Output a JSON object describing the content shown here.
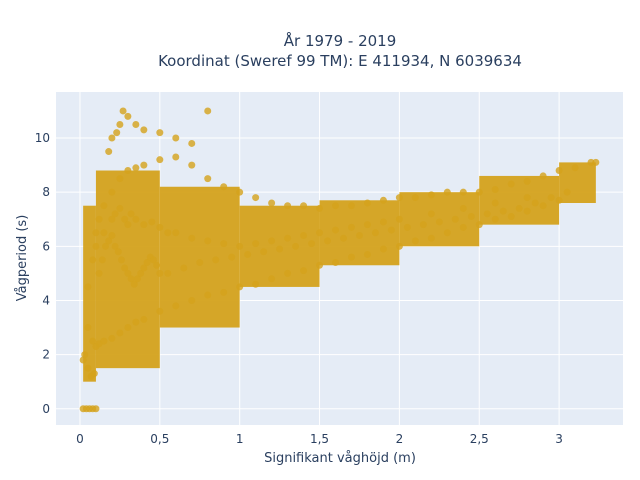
{
  "chart_data": {
    "type": "scatter",
    "title_line1": "År 1979 - 2019",
    "title_line2": "Koordinat (Sweref 99 TM): E 411934, N 6039634",
    "xlabel": "Signifikant våghöjd (m)",
    "ylabel": "Vågperiod (s)",
    "xlim": [
      -0.15,
      3.4
    ],
    "ylim": [
      -0.6,
      11.7
    ],
    "x_ticks": [
      0,
      0.5,
      1,
      1.5,
      2,
      2.5,
      3
    ],
    "x_tick_labels": [
      "0",
      "0,5",
      "1",
      "1,5",
      "2",
      "2,5",
      "3"
    ],
    "y_ticks": [
      0,
      2,
      4,
      6,
      8,
      10
    ],
    "y_tick_labels": [
      "0",
      "2",
      "4",
      "6",
      "8",
      "10"
    ],
    "grid": true,
    "colors": {
      "marker": "#d4a21c",
      "plot_bg": "#e5ecf6",
      "grid": "#ffffff",
      "text": "#2a3f5f"
    },
    "series": [
      {
        "x": [
          0.02,
          0.04,
          0.06,
          0.08,
          0.1,
          0.02,
          0.03,
          0.05,
          0.07,
          0.09,
          0.05,
          0.08,
          0.1,
          0.12,
          0.15,
          0.2,
          0.25,
          0.3,
          0.35,
          0.4,
          0.5,
          0.6,
          0.7,
          0.8,
          0.9,
          1.0,
          1.1,
          1.2,
          1.3,
          1.4,
          1.5,
          1.6,
          1.7,
          1.8,
          1.9,
          2.0,
          2.1,
          2.2,
          2.3,
          2.4,
          2.5,
          2.6,
          2.7,
          2.8,
          2.9,
          3.0,
          3.1,
          3.2,
          3.23,
          0.05,
          0.08,
          0.1,
          0.12,
          0.15,
          0.2,
          0.25,
          0.3,
          0.35,
          0.4,
          0.5,
          0.6,
          0.7,
          0.8,
          0.9,
          1.0,
          1.1,
          1.2,
          1.3,
          1.4,
          1.5,
          1.6,
          1.7,
          1.8,
          1.9,
          2.0,
          2.1,
          2.2,
          2.3,
          2.4,
          2.5,
          2.6,
          2.7,
          2.8,
          2.9,
          3.0,
          0.1,
          0.15,
          0.2,
          0.22,
          0.25,
          0.28,
          0.3,
          0.32,
          0.35,
          0.4,
          0.45,
          0.5,
          0.55,
          0.6,
          0.7,
          0.8,
          0.9,
          1.0,
          1.1,
          1.2,
          1.3,
          1.4,
          1.5,
          1.6,
          1.7,
          1.8,
          1.9,
          2.0,
          2.2,
          2.4,
          2.6,
          2.8,
          0.18,
          0.2,
          0.23,
          0.25,
          0.27,
          0.3,
          0.35,
          0.4,
          0.5,
          0.6,
          0.7,
          0.8,
          0.55,
          0.65,
          0.75,
          0.85,
          0.95,
          1.05,
          1.15,
          1.25,
          1.35,
          1.45,
          1.55,
          1.65,
          1.75,
          1.85,
          1.95,
          2.05,
          2.15,
          2.25,
          2.35,
          2.45,
          2.55,
          2.65,
          2.75,
          2.85,
          2.95,
          3.05,
          0.12,
          0.14,
          0.16,
          0.18,
          0.2,
          0.22,
          0.24,
          0.26,
          0.28,
          0.3,
          0.32,
          0.34,
          0.36,
          0.38,
          0.4,
          0.42,
          0.44,
          0.46,
          0.48,
          0.5
        ],
        "y": [
          0,
          0,
          0,
          0,
          0,
          1.8,
          2.0,
          1.5,
          1.2,
          1.3,
          4.5,
          5.5,
          6.5,
          7.0,
          7.5,
          8.0,
          8.5,
          8.8,
          8.9,
          9.0,
          9.2,
          9.3,
          9.0,
          8.5,
          8.2,
          8.0,
          7.8,
          7.6,
          7.5,
          7.5,
          7.4,
          7.5,
          7.5,
          7.6,
          7.7,
          7.8,
          7.8,
          7.9,
          8.0,
          8.0,
          8.0,
          8.1,
          8.3,
          8.4,
          8.6,
          8.8,
          8.9,
          9.1,
          9.1,
          3.0,
          2.5,
          2.3,
          2.4,
          2.5,
          2.6,
          2.8,
          3.0,
          3.2,
          3.3,
          3.6,
          3.8,
          4.0,
          4.2,
          4.3,
          4.5,
          4.6,
          4.8,
          5.0,
          5.1,
          5.3,
          5.4,
          5.6,
          5.7,
          5.9,
          6.0,
          6.2,
          6.3,
          6.5,
          6.7,
          6.8,
          7.0,
          7.1,
          7.3,
          7.5,
          7.7,
          6.0,
          6.5,
          7.0,
          7.2,
          7.4,
          7.0,
          6.8,
          7.2,
          7.0,
          6.8,
          6.9,
          6.7,
          6.5,
          6.5,
          6.3,
          6.2,
          6.1,
          6.0,
          6.1,
          6.2,
          6.3,
          6.4,
          6.5,
          6.6,
          6.7,
          6.8,
          6.9,
          7.0,
          7.2,
          7.4,
          7.6,
          7.8,
          9.5,
          10.0,
          10.2,
          10.5,
          11.0,
          10.8,
          10.5,
          10.3,
          10.2,
          10.0,
          9.8,
          11.0,
          5.0,
          5.2,
          5.4,
          5.5,
          5.6,
          5.7,
          5.8,
          5.9,
          6.0,
          6.1,
          6.2,
          6.3,
          6.4,
          6.5,
          6.6,
          6.7,
          6.8,
          6.9,
          7.0,
          7.1,
          7.2,
          7.3,
          7.4,
          7.6,
          7.8,
          8.0,
          5.0,
          5.5,
          6.0,
          6.2,
          6.4,
          6.0,
          5.8,
          5.5,
          5.2,
          5.0,
          4.8,
          4.6,
          4.8,
          5.0,
          5.2,
          5.4,
          5.6,
          5.5,
          5.3,
          5.0
        ],
        "fill_regions": [
          {
            "x_from": 0.02,
            "x_to": 0.1,
            "y_low": 1.0,
            "y_high": 7.5
          },
          {
            "x_from": 0.1,
            "x_to": 0.5,
            "y_low": 1.5,
            "y_high": 8.8
          },
          {
            "x_from": 0.5,
            "x_to": 1.0,
            "y_low": 3.0,
            "y_high": 8.2
          },
          {
            "x_from": 1.0,
            "x_to": 1.5,
            "y_low": 4.5,
            "y_high": 7.5
          },
          {
            "x_from": 1.5,
            "x_to": 2.0,
            "y_low": 5.3,
            "y_high": 7.7
          },
          {
            "x_from": 2.0,
            "x_to": 2.5,
            "y_low": 6.0,
            "y_high": 8.0
          },
          {
            "x_from": 2.5,
            "x_to": 3.0,
            "y_low": 6.8,
            "y_high": 8.6
          },
          {
            "x_from": 3.0,
            "x_to": 3.23,
            "y_low": 7.6,
            "y_high": 9.1
          }
        ]
      }
    ]
  }
}
